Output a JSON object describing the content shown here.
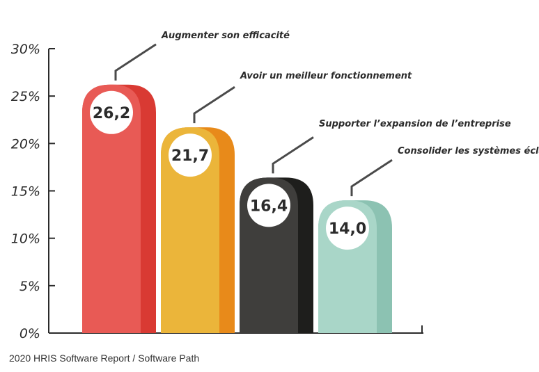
{
  "caption": "2020 HRIS Software Report / Software Path",
  "chart_data": {
    "type": "bar",
    "categories": [
      "Augmenter son efficacité",
      "Avoir un meilleur fonctionnement",
      "Supporter l’expansion de l’entreprise",
      "Consolider les systèmes éclatés"
    ],
    "values": [
      26.2,
      21.7,
      16.4,
      14.0
    ],
    "value_labels": [
      "26,2",
      "21,7",
      "16,4",
      "14,0"
    ],
    "yticks": [
      0,
      5,
      10,
      15,
      20,
      25,
      30
    ],
    "ytick_labels": [
      "0%",
      "5%",
      "10%",
      "15%",
      "20%",
      "25%",
      "30%"
    ],
    "ylim": [
      0,
      30
    ],
    "grid": false,
    "legend": "none",
    "colors": [
      {
        "light": "#e85a55",
        "dark": "#d93a33"
      },
      {
        "light": "#ebb53a",
        "dark": "#e88a1a"
      },
      {
        "light": "#3f3e3c",
        "dark": "#1e1e1c"
      },
      {
        "light": "#a9d6c8",
        "dark": "#8cc2b2"
      }
    ]
  }
}
